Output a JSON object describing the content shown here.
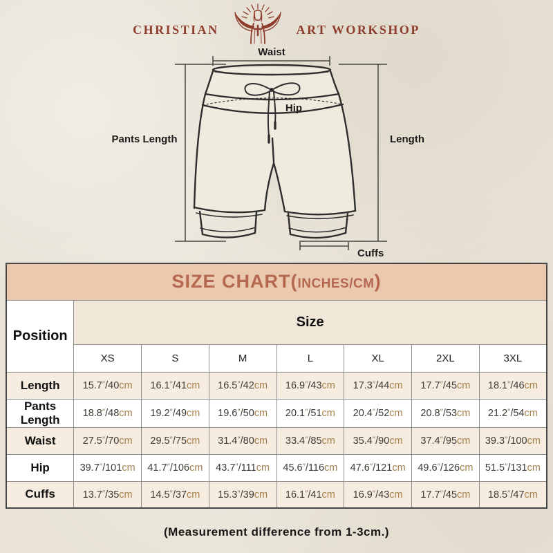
{
  "brand": {
    "left": "CHRISTIAN",
    "right": "ART WORKSHOP",
    "logo_icon": "jesus-open-arms"
  },
  "diagram": {
    "labels": {
      "waist": "Waist",
      "hip": "Hip",
      "pants_length": "Pants Length",
      "length": "Length",
      "cuffs": "Cuffs"
    }
  },
  "table": {
    "title_prefix": "SIZE CHART(",
    "title_small": "INCHES/CM",
    "title_suffix": ")",
    "position_header": "Position",
    "size_header": "Size",
    "sizes": [
      "XS",
      "S",
      "M",
      "L",
      "XL",
      "2XL",
      "3XL"
    ],
    "rows": [
      {
        "label": "Length",
        "values": [
          "15.7″/40cm",
          "16.1″/41cm",
          "16.5″/42cm",
          "16.9″/43cm",
          "17.3″/44cm",
          "17.7″/45cm",
          "18.1″/46cm"
        ]
      },
      {
        "label": "Pants Length",
        "values": [
          "18.8″/48cm",
          "19.2″/49cm",
          "19.6″/50cm",
          "20.1″/51cm",
          "20.4″/52cm",
          "20.8″/53cm",
          "21.2″/54cm"
        ]
      },
      {
        "label": "Waist",
        "values": [
          "27.5″/70cm",
          "29.5″/75cm",
          "31.4″/80cm",
          "33.4″/85cm",
          "35.4″/90cm",
          "37.4″/95cm",
          "39.3″/100cm"
        ]
      },
      {
        "label": "Hip",
        "values": [
          "39.7″/101cm",
          "41.7″/106cm",
          "43.7″/111cm",
          "45.6″/116cm",
          "47.6″/121cm",
          "49.6″/126cm",
          "51.5″/131cm"
        ]
      },
      {
        "label": "Cuffs",
        "values": [
          "13.7″/35cm",
          "14.5″/37cm",
          "15.3″/39cm",
          "16.1″/41cm",
          "16.9″/43cm",
          "17.7″/45cm",
          "18.5″/47cm"
        ]
      }
    ]
  },
  "footer": {
    "note": "(Measurement difference from 1-3cm.)"
  },
  "colors": {
    "bg": "#e8e3d6",
    "maroon": "#8e3c2c",
    "title-bg": "#eac9ae",
    "title-text": "#b5674f",
    "size-bg": "#f1e7d9",
    "cream": "#f6ecdf",
    "tan": "#a5804c",
    "border": "#8e8e8e",
    "border-dark": "#454545",
    "ink": "#1c1c1c"
  }
}
